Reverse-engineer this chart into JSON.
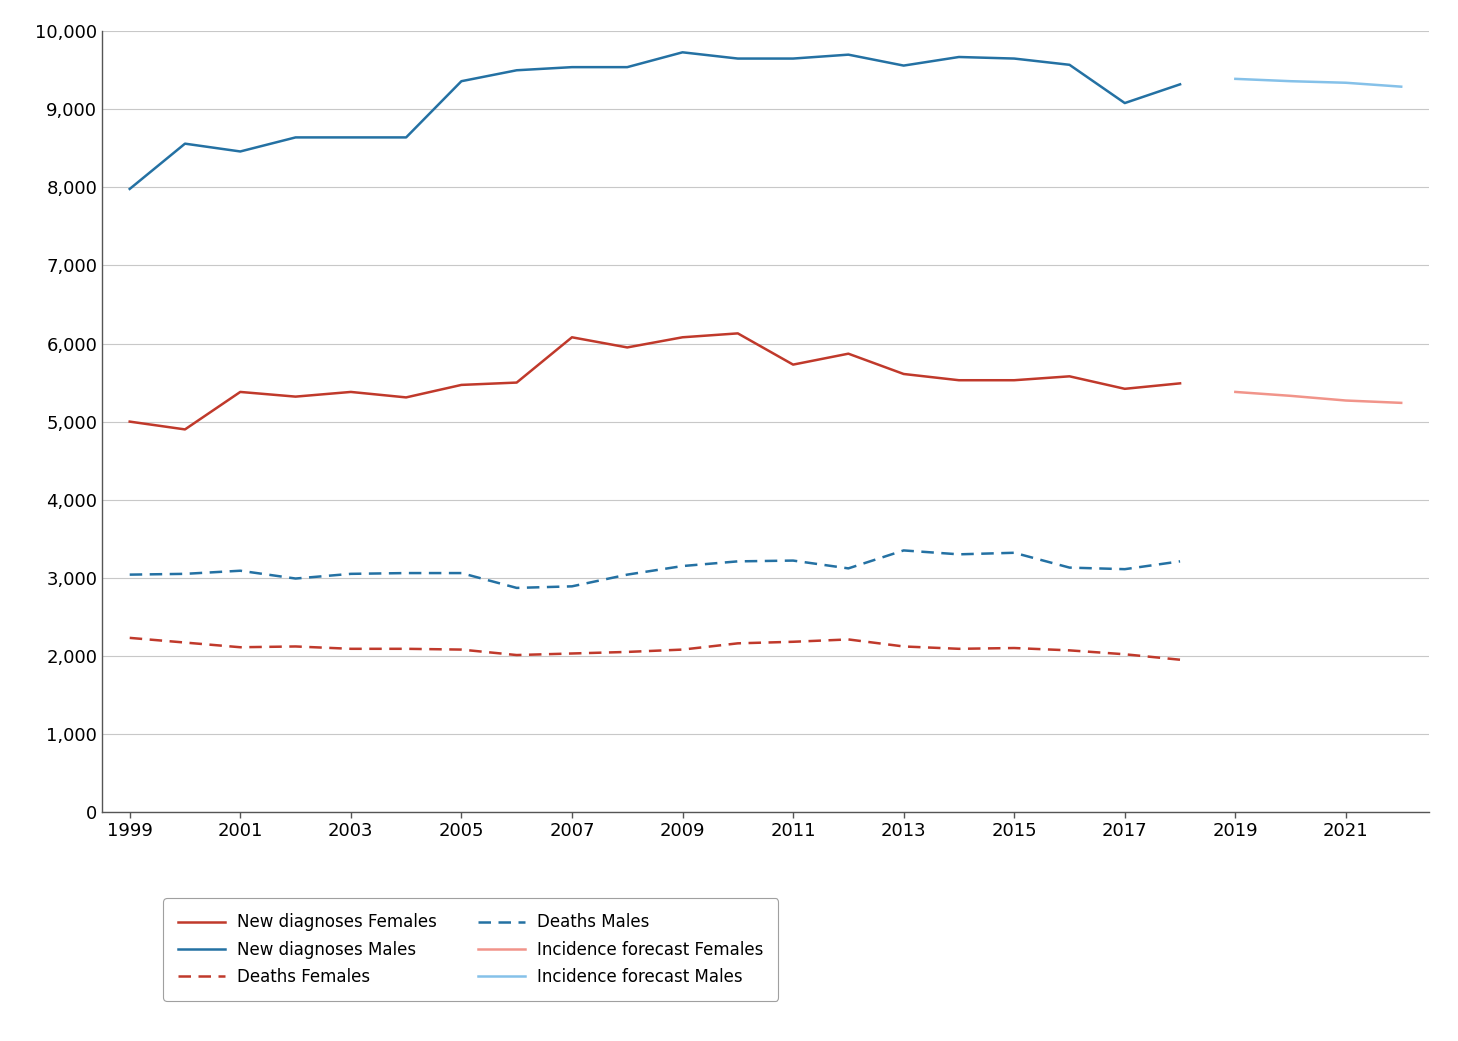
{
  "years_actual": [
    1999,
    2000,
    2001,
    2002,
    2003,
    2004,
    2005,
    2006,
    2007,
    2008,
    2009,
    2010,
    2011,
    2012,
    2013,
    2014,
    2015,
    2016,
    2017,
    2018
  ],
  "new_diag_females": [
    5000,
    4900,
    5380,
    5320,
    5380,
    5310,
    5470,
    5500,
    6080,
    5950,
    6080,
    6130,
    5730,
    5870,
    5610,
    5530,
    5530,
    5580,
    5420,
    5490
  ],
  "new_diag_males": [
    7980,
    8560,
    8460,
    8640,
    8640,
    8640,
    9360,
    9500,
    9540,
    9540,
    9730,
    9650,
    9650,
    9700,
    9560,
    9670,
    9650,
    9570,
    9080,
    9320
  ],
  "deaths_females": [
    2230,
    2170,
    2110,
    2120,
    2090,
    2090,
    2080,
    2010,
    2030,
    2050,
    2080,
    2160,
    2180,
    2210,
    2120,
    2090,
    2100,
    2070,
    2020,
    1950
  ],
  "deaths_males": [
    3040,
    3050,
    3090,
    2990,
    3050,
    3060,
    3060,
    2870,
    2890,
    3040,
    3150,
    3210,
    3220,
    3120,
    3350,
    3300,
    3320,
    3130,
    3110,
    3210
  ],
  "years_forecast": [
    2019,
    2020,
    2021,
    2022
  ],
  "forecast_females": [
    5380,
    5330,
    5270,
    5240
  ],
  "forecast_males": [
    9390,
    9360,
    9340,
    9290
  ],
  "color_red": "#c0392b",
  "color_blue": "#2471a3",
  "color_pink": "#f1948a",
  "color_lightblue": "#85c1e9",
  "ylim": [
    0,
    10000
  ],
  "yticks": [
    0,
    1000,
    2000,
    3000,
    4000,
    5000,
    6000,
    7000,
    8000,
    9000,
    10000
  ],
  "xticks": [
    1999,
    2001,
    2003,
    2005,
    2007,
    2009,
    2011,
    2013,
    2015,
    2017,
    2019,
    2021
  ],
  "xlim_left": 1998.5,
  "xlim_right": 2022.5
}
